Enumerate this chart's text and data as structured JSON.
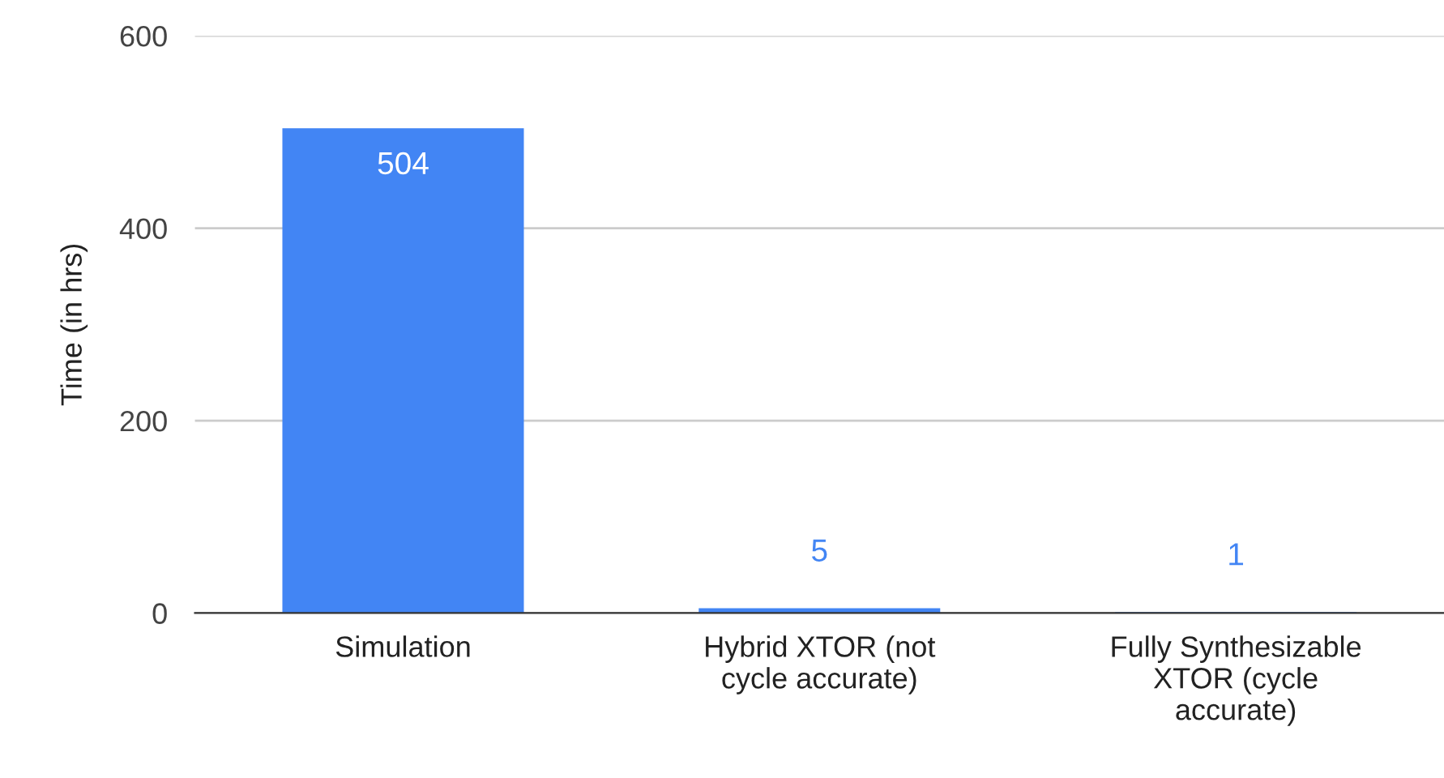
{
  "chart_data": {
    "type": "bar",
    "ylabel": "Time (in hrs)",
    "categories": [
      "Simulation",
      "Hybrid XTOR (not\ncycle accurate)",
      "Fully Synthesizable\nXTOR (cycle\naccurate)"
    ],
    "values": [
      504,
      5,
      1
    ],
    "color": "#4285f4",
    "ylim": [
      0,
      600
    ],
    "yticks": [
      0,
      200,
      400,
      600
    ],
    "grid": "y",
    "data_labels": true
  }
}
